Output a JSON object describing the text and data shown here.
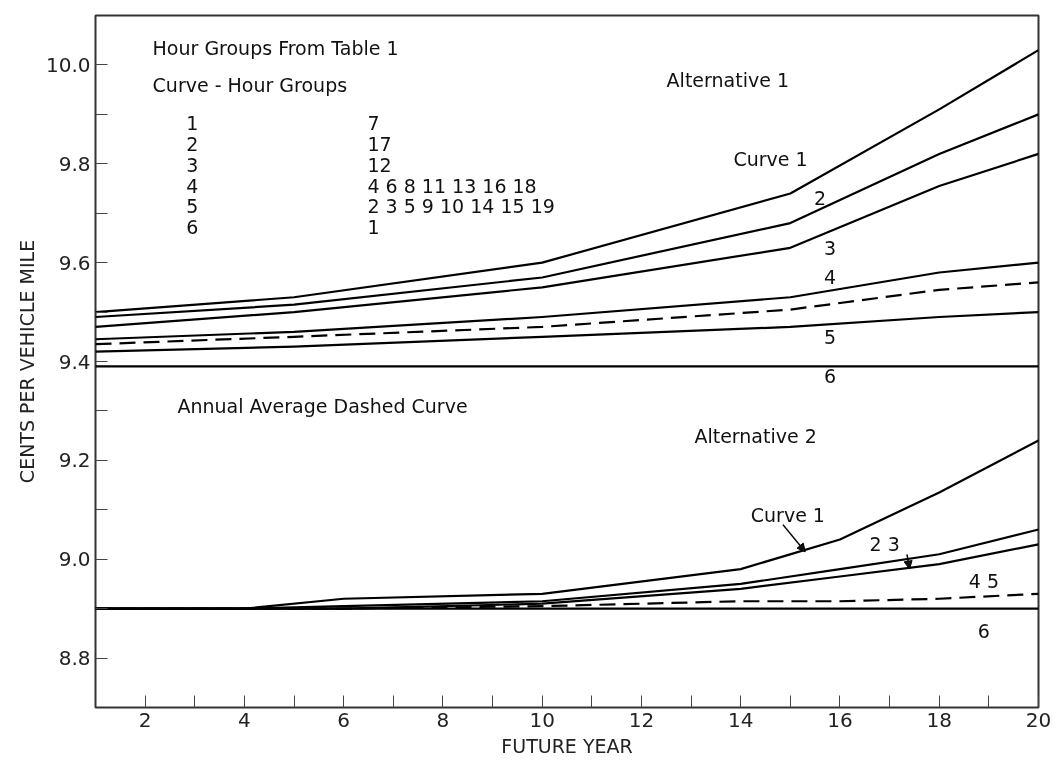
{
  "chart_data": {
    "type": "line",
    "xlabel": "FUTURE YEAR",
    "ylabel": "CENTS PER VEHICLE MILE",
    "xlim": [
      1,
      20
    ],
    "ylim": [
      8.7,
      10.1
    ],
    "xticks": [
      2,
      {
        "value": 3,
        "label": null
      },
      4,
      {
        "value": 5,
        "label": null
      },
      6,
      {
        "value": 7,
        "label": null
      },
      8,
      {
        "value": 9,
        "label": null
      },
      10,
      {
        "value": 11,
        "label": null
      },
      12,
      {
        "value": 13,
        "label": null
      },
      14,
      {
        "value": 15,
        "label": null
      },
      16,
      {
        "value": 17,
        "label": null
      },
      18,
      {
        "value": 19,
        "label": null
      },
      20
    ],
    "yticks": [
      8.8,
      {
        "value": 8.9,
        "label": null
      },
      "9.0",
      {
        "value": 9.1,
        "label": null
      },
      9.2,
      {
        "value": 9.3,
        "label": null
      },
      9.4,
      {
        "value": 9.5,
        "label": null
      },
      9.6,
      {
        "value": 9.7,
        "label": null
      },
      9.8,
      {
        "value": 9.9,
        "label": null
      },
      "10.0"
    ],
    "x": [
      1,
      5,
      10,
      15,
      18,
      20
    ],
    "marker": "none",
    "series": [
      {
        "color": "#000000",
        "line_style": "solid",
        "values": [
          9.5,
          9.53,
          9.6,
          9.74,
          9.91,
          10.03
        ]
      },
      {
        "color": "#000000",
        "line_style": "solid",
        "values": [
          9.49,
          9.515,
          9.57,
          9.68,
          9.82,
          9.9
        ]
      },
      {
        "color": "#000000",
        "line_style": "solid",
        "values": [
          9.47,
          9.5,
          9.55,
          9.63,
          9.755,
          9.82
        ]
      },
      {
        "color": "#000000",
        "line_style": "solid",
        "values": [
          9.445,
          9.46,
          9.49,
          9.53,
          9.58,
          9.6
        ]
      },
      {
        "color": "#000000",
        "line_style": "dashed",
        "values": [
          9.435,
          9.45,
          9.47,
          9.505,
          9.545,
          9.56
        ]
      },
      {
        "color": "#000000",
        "line_style": "solid",
        "values": [
          9.42,
          9.43,
          9.45,
          9.47,
          9.49,
          9.5
        ]
      },
      {
        "color": "#000000",
        "line_style": "solid",
        "values": [
          9.39,
          9.39,
          9.39,
          9.39,
          9.39,
          9.39
        ]
      },
      {
        "color": "#000000",
        "line_style": "solid",
        "x": [
          1,
          4,
          6,
          10,
          14,
          16,
          18,
          20
        ],
        "values": [
          8.9,
          8.9,
          8.92,
          8.93,
          8.98,
          9.04,
          9.135,
          9.24
        ]
      },
      {
        "color": "#000000",
        "line_style": "solid",
        "x": [
          1,
          4,
          6,
          10,
          14,
          16,
          18,
          20
        ],
        "values": [
          8.9,
          8.9,
          8.905,
          8.915,
          8.95,
          8.98,
          9.01,
          9.06
        ]
      },
      {
        "color": "#000000",
        "line_style": "solid",
        "x": [
          1,
          4,
          6,
          10,
          14,
          16,
          18,
          20
        ],
        "values": [
          8.9,
          8.9,
          8.9,
          8.91,
          8.94,
          8.965,
          8.99,
          9.03
        ]
      },
      {
        "color": "#000000",
        "line_style": "dashed",
        "x": [
          1,
          4,
          6,
          10,
          14,
          16,
          18,
          20
        ],
        "values": [
          8.9,
          8.9,
          8.9,
          8.905,
          8.915,
          8.915,
          8.92,
          8.93
        ]
      },
      {
        "color": "#000000",
        "line_style": "solid",
        "x": [
          1,
          4,
          6,
          10,
          14,
          16,
          18,
          20
        ],
        "values": [
          8.9,
          8.9,
          8.9,
          8.9,
          8.9,
          8.9,
          8.9,
          8.9
        ]
      }
    ],
    "annotations": [
      "Hour Groups From Table 1",
      "Curve  -  Hour Groups",
      "1\n2\n3\n4\n5\n6",
      "7\n17\n12\n4 6 8 11 13 16 18\n2 3 5 9 10 14 15 19\n1",
      "Alternative 1",
      "Annual Average Dashed Curve",
      "Alternative 2",
      "Curve 1",
      "2",
      "3",
      "4",
      "5",
      "6",
      {
        "text": "Curve 1",
        "x": 15.3,
        "y": 9.015
      },
      {
        "text": "2 3",
        "x": 17.4,
        "y": 8.98
      },
      "4 5",
      "6"
    ]
  }
}
